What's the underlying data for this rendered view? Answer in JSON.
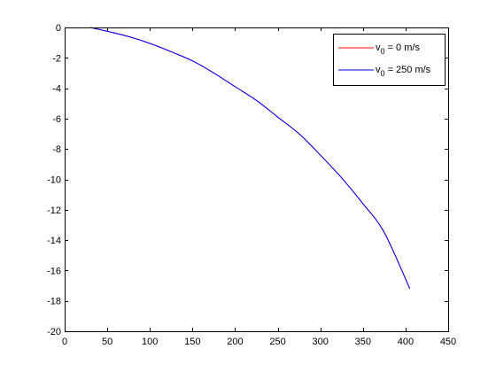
{
  "chart_data": {
    "type": "line",
    "title": "",
    "xlabel": "",
    "ylabel": "",
    "xlim": [
      0,
      450
    ],
    "ylim": [
      -20,
      0
    ],
    "xticks": [
      0,
      50,
      100,
      150,
      200,
      250,
      300,
      350,
      400,
      450
    ],
    "yticks": [
      0,
      -2,
      -4,
      -6,
      -8,
      -10,
      -12,
      -14,
      -16,
      -18,
      -20
    ],
    "grid": false,
    "legend_position": "top-right",
    "series": [
      {
        "name_main": "v",
        "name_sub": "0",
        "name_rest": " = 0 m/s",
        "color": "#ff0000",
        "x": [
          30,
          50,
          75,
          100,
          125,
          150,
          175,
          200,
          225,
          250,
          275,
          300,
          325,
          350,
          375,
          405
        ],
        "y": [
          0,
          -0.25,
          -0.6,
          -1.05,
          -1.6,
          -2.2,
          -3.0,
          -3.9,
          -4.8,
          -5.9,
          -7.0,
          -8.4,
          -9.9,
          -11.6,
          -13.5,
          -17.2
        ],
        "hidden_behind_next": true
      },
      {
        "name_main": "v",
        "name_sub": "0",
        "name_rest": " = 250 m/s",
        "color": "#0000ff",
        "x": [
          30,
          50,
          75,
          100,
          125,
          150,
          175,
          200,
          225,
          250,
          275,
          300,
          325,
          350,
          375,
          405
        ],
        "y": [
          0,
          -0.25,
          -0.6,
          -1.05,
          -1.6,
          -2.2,
          -3.0,
          -3.9,
          -4.8,
          -5.9,
          -7.0,
          -8.4,
          -9.9,
          -11.6,
          -13.5,
          -17.2
        ]
      }
    ]
  }
}
